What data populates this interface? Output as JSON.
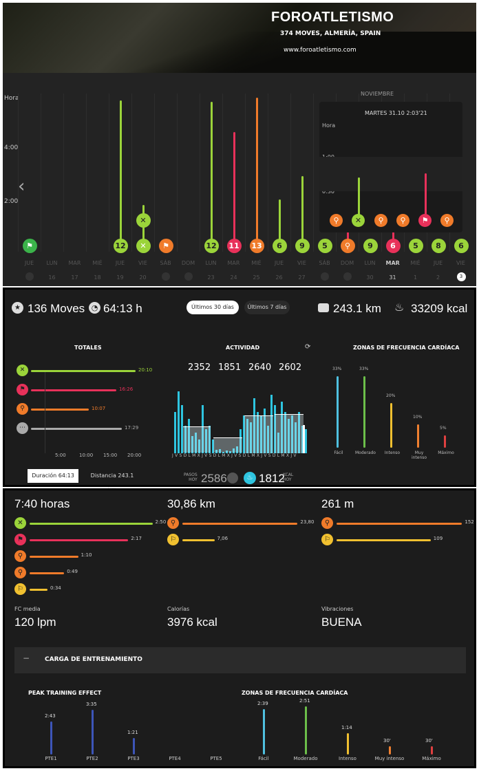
{
  "header": {
    "title": "FOROATLETISMO",
    "subtitle": "374 MOVES, ALMERÍA, SPAIN",
    "url": "www.foroatletismo.com"
  },
  "timeline": {
    "month": "NOVIEMBRE",
    "y_labels": [
      "Hora",
      "4:00",
      "2:00"
    ],
    "day_labels": [
      "JUE",
      "LUN",
      "MAR",
      "MIÉ",
      "JUE",
      "VIE",
      "SÁB",
      "DOM",
      "LUN",
      "MAR",
      "MIÉ",
      "JUE",
      "VIE",
      "SÁB",
      "DOM",
      "LUN",
      "MAR",
      "MIÉ",
      "JUE",
      "VIE"
    ],
    "date_labels": [
      "",
      "16",
      "17",
      "18",
      "19",
      "20",
      "",
      "",
      "23",
      "24",
      "25",
      "26",
      "27",
      "",
      "",
      "30",
      "31",
      "1",
      "2",
      "3"
    ],
    "badges": [
      "12",
      "12",
      "11",
      "13",
      "6",
      "9",
      "5",
      "9",
      "6",
      "5",
      "8",
      "6"
    ],
    "selected_day": "MAR",
    "selected_date": "31",
    "today_date": "3",
    "tooltip": {
      "title": "MARTES 31.10 2:03'21",
      "ylabel": "Hora",
      "y1": "1:00",
      "y2": "0:30"
    }
  },
  "summary": {
    "moves": "136 Moves",
    "hours": "64:13 h",
    "tab_30": "Últimos 30 días",
    "tab_7": "Últimos 7 días",
    "distance": "243.1 km",
    "kcal": "33209 kcal"
  },
  "totales": {
    "title": "TOTALES",
    "rows": [
      {
        "label": "20:10",
        "color": "#9bd43a"
      },
      {
        "label": "16:26",
        "color": "#e8315a"
      },
      {
        "label": "10:07",
        "color": "#f07b2a"
      },
      {
        "label": "17:29",
        "color": "#aaaaaa"
      }
    ],
    "ticks": [
      "5:00",
      "10:00",
      "15:00",
      "20:00"
    ],
    "btn_duration": "Duración 64:13",
    "btn_distance": "Distancia 243.1 km"
  },
  "actividad": {
    "title": "ACTIVIDAD",
    "numbers": [
      "2352",
      "1851",
      "2640",
      "2602"
    ],
    "xlabels": "J V S D L M X J V S D L M X J V S D L M X J V S D L M X J V",
    "steps_label1": "PASOS",
    "steps_label2": "HOY",
    "steps_value": "2586",
    "kcal_value": "1812",
    "kcal_label1": "KCAL",
    "kcal_label2": "HOY"
  },
  "zonas": {
    "title": "ZONAS DE FRECUENCIA CARDÍACA",
    "items": [
      {
        "pct": "33%",
        "label": "Fácil",
        "color": "#4fc0e0",
        "h": 0.95
      },
      {
        "pct": "33%",
        "label": "Moderado",
        "color": "#6cbf4a",
        "h": 0.95
      },
      {
        "pct": "20%",
        "label": "Intenso",
        "color": "#f0c030",
        "h": 0.59
      },
      {
        "pct": "10%",
        "label": "Muy intenso",
        "color": "#f08030",
        "h": 0.31
      },
      {
        "pct": "5%",
        "label": "Máximo",
        "color": "#e04040",
        "h": 0.16
      }
    ]
  },
  "detail": {
    "time": "7:40 horas",
    "km": "30,86 km",
    "m": "261 m",
    "time_rows": [
      {
        "v": "2:50",
        "color": "#9bd43a",
        "w": 0.96
      },
      {
        "v": "2:17",
        "color": "#e8315a",
        "w": 0.77
      },
      {
        "v": "1:10",
        "color": "#f07b2a",
        "w": 0.38
      },
      {
        "v": "0:49",
        "color": "#f07b2a",
        "w": 0.27
      },
      {
        "v": "0:34",
        "color": "#f0c030",
        "w": 0.14
      }
    ],
    "km_rows": [
      {
        "v": "23,80",
        "color": "#f07b2a",
        "w": 0.9
      },
      {
        "v": "7,06",
        "color": "#f0c030",
        "w": 0.25
      }
    ],
    "m_rows": [
      {
        "v": "152",
        "color": "#f07b2a",
        "w": 0.96
      },
      {
        "v": "109",
        "color": "#f0c030",
        "w": 0.72
      }
    ],
    "fc_label": "FC media",
    "fc": "120 lpm",
    "cal_label": "Calorías",
    "cal": "3976 kcal",
    "vib_label": "Vibraciones",
    "vib": "BUENA"
  },
  "carga": {
    "title": "CARGA DE ENTRENAMIENTO",
    "pte_title": "PEAK TRAINING EFFECT",
    "pte": [
      {
        "label": "PTE1",
        "v": "2:43",
        "h": 0.67
      },
      {
        "label": "PTE2",
        "v": "3:35",
        "h": 0.9
      },
      {
        "label": "PTE3",
        "v": "1:21",
        "h": 0.33
      },
      {
        "label": "PTE4",
        "v": "",
        "h": 0
      },
      {
        "label": "PTE5",
        "v": "",
        "h": 0
      }
    ],
    "zonas_title": "ZONAS DE FRECUENCIA CARDÍACA",
    "zonas": [
      {
        "label": "Fácil",
        "v": "2:39",
        "color": "#4fc0e0",
        "h": 0.92
      },
      {
        "label": "Moderado",
        "v": "2:51",
        "color": "#6cbf4a",
        "h": 0.97
      },
      {
        "label": "Intenso",
        "v": "1:14",
        "color": "#f0c030",
        "h": 0.43
      },
      {
        "label": "Muy intenso",
        "v": "30'",
        "color": "#f08030",
        "h": 0.17
      },
      {
        "label": "Máximo",
        "v": "30'",
        "color": "#e04040",
        "h": 0.17
      }
    ]
  }
}
